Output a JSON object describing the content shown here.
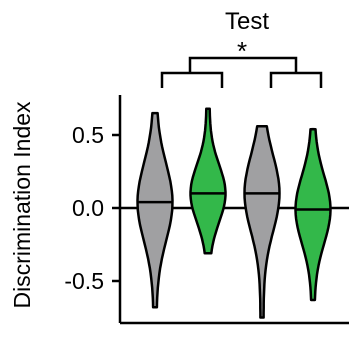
{
  "chart_data": {
    "type": "violin",
    "title": "Test",
    "ylabel": "Discrimination Index",
    "yticks": [
      "0.5",
      "0.0",
      "-0.5"
    ],
    "ylim": [
      -0.75,
      0.7
    ],
    "reference_line_y": 0,
    "significance_marker": "*",
    "colors": {
      "gray": "#a0a0a2",
      "green": "#33b84a",
      "outline": "#000000"
    },
    "groups": [
      {
        "color": "gray",
        "min": -0.68,
        "max": 0.65,
        "median": 0.04
      },
      {
        "color": "green",
        "min": -0.31,
        "max": 0.68,
        "median": 0.1
      },
      {
        "color": "gray",
        "min": -0.75,
        "max": 0.56,
        "median": 0.1
      },
      {
        "color": "green",
        "min": -0.63,
        "max": 0.54,
        "median": -0.01
      }
    ]
  }
}
